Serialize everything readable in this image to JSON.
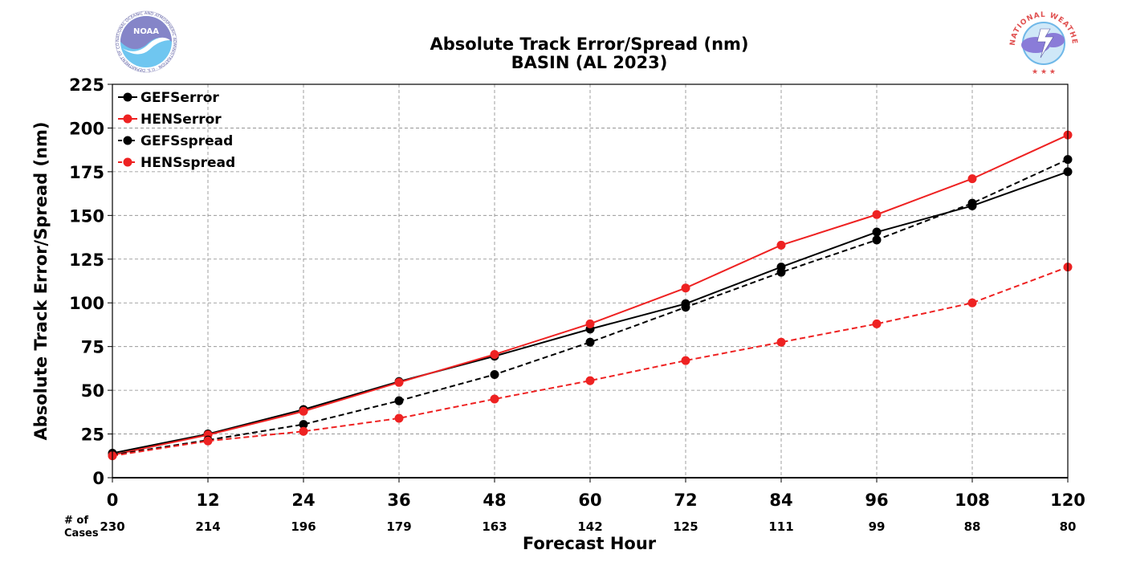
{
  "chart_data": {
    "type": "line",
    "title": "Absolute Track Error/Spread (nm)",
    "subtitle": "BASIN (AL 2023)",
    "xlabel": "Forecast Hour",
    "ylabel": "Absolute Track Error/Spread (nm)",
    "x": [
      0,
      12,
      24,
      36,
      48,
      60,
      72,
      84,
      96,
      108,
      120
    ],
    "xlim": [
      0,
      120
    ],
    "ylim": [
      0,
      225
    ],
    "yticks": [
      0,
      25,
      50,
      75,
      100,
      125,
      150,
      175,
      200,
      225
    ],
    "grid": true,
    "legend_position": "top-left",
    "cases_label": "# of\nCases",
    "cases": [
      230,
      214,
      196,
      179,
      163,
      142,
      125,
      111,
      99,
      88,
      80
    ],
    "series": [
      {
        "name": "GEFSerror",
        "color": "#000000",
        "dashed": false,
        "values": [
          14,
          25,
          39,
          55,
          69.5,
          85,
          99.5,
          120.5,
          140.5,
          155.5,
          175
        ]
      },
      {
        "name": "HENSerror",
        "color": "#ee2222",
        "dashed": false,
        "values": [
          13,
          24.5,
          38,
          54.5,
          70.5,
          88,
          108.5,
          133,
          150.5,
          171,
          196
        ]
      },
      {
        "name": "GEFSspread",
        "color": "#000000",
        "dashed": true,
        "values": [
          13,
          21.5,
          30.5,
          44,
          59,
          77.5,
          97.5,
          117.5,
          136,
          157,
          182
        ]
      },
      {
        "name": "HENSspread",
        "color": "#ee2222",
        "dashed": true,
        "values": [
          12.5,
          21,
          26.5,
          34,
          45,
          55.5,
          67,
          77.5,
          88,
          100,
          120.5
        ]
      }
    ]
  },
  "logos": {
    "left": {
      "name": "NOAA",
      "text": "NOAA",
      "ring_text": "NATIONAL OCEANIC AND ATMOSPHERIC ADMINISTRATION · U.S. DEPARTMENT OF COMMERCE"
    },
    "right": {
      "name": "National Weather Service",
      "ring_text": "NATIONAL WEATHER SERVICE"
    }
  }
}
